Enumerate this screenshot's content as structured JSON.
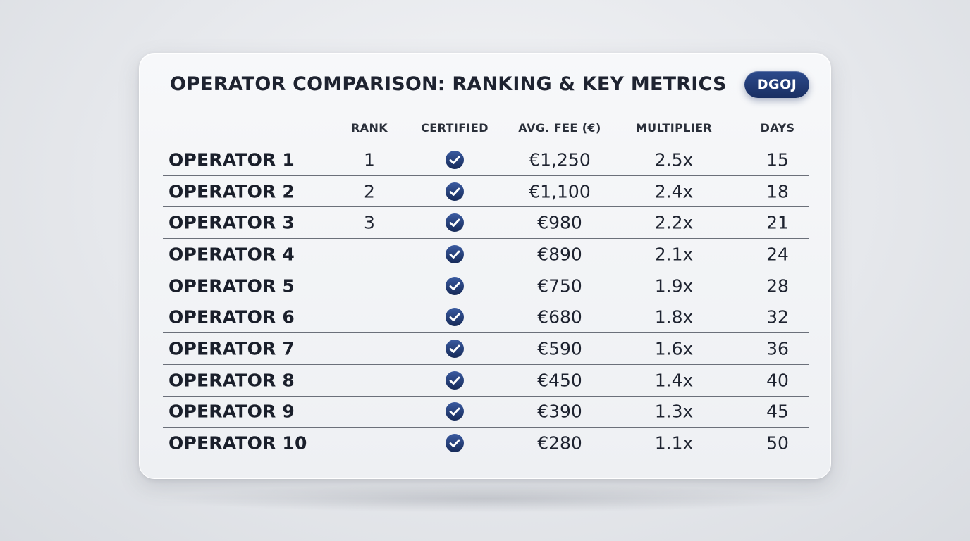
{
  "title": "OPERATOR COMPARISON: RANKING & KEY METRICS",
  "badge": "DGOJ",
  "colors": {
    "accent": "#1f3a78",
    "text": "#1e2330",
    "divider": "#6b707a"
  },
  "table": {
    "headers": {
      "rank": "RANK",
      "certified": "CERTIFIED",
      "fee": "AVG. FEE (€)",
      "multiplier": "MULTIPLIER",
      "days": "DAYS"
    },
    "certified_icon": "check-circle-icon",
    "rows": [
      {
        "name": "OPERATOR 1",
        "rank": "1",
        "certified": true,
        "fee": "€1,250",
        "multiplier": "2.5x",
        "days": "15"
      },
      {
        "name": "OPERATOR 2",
        "rank": "2",
        "certified": true,
        "fee": "€1,100",
        "multiplier": "2.4x",
        "days": "18"
      },
      {
        "name": "OPERATOR 3",
        "rank": "3",
        "certified": true,
        "fee": "€980",
        "multiplier": "2.2x",
        "days": "21"
      },
      {
        "name": "OPERATOR 4",
        "rank": "",
        "certified": true,
        "fee": "€890",
        "multiplier": "2.1x",
        "days": "24"
      },
      {
        "name": "OPERATOR 5",
        "rank": "",
        "certified": true,
        "fee": "€750",
        "multiplier": "1.9x",
        "days": "28"
      },
      {
        "name": "OPERATOR 6",
        "rank": "",
        "certified": true,
        "fee": "€680",
        "multiplier": "1.8x",
        "days": "32"
      },
      {
        "name": "OPERATOR 7",
        "rank": "",
        "certified": true,
        "fee": "€590",
        "multiplier": "1.6x",
        "days": "36"
      },
      {
        "name": "OPERATOR 8",
        "rank": "",
        "certified": true,
        "fee": "€450",
        "multiplier": "1.4x",
        "days": "40"
      },
      {
        "name": "OPERATOR 9",
        "rank": "",
        "certified": true,
        "fee": "€390",
        "multiplier": "1.3x",
        "days": "45"
      },
      {
        "name": "OPERATOR 10",
        "rank": "",
        "certified": true,
        "fee": "€280",
        "multiplier": "1.1x",
        "days": "50"
      }
    ]
  }
}
